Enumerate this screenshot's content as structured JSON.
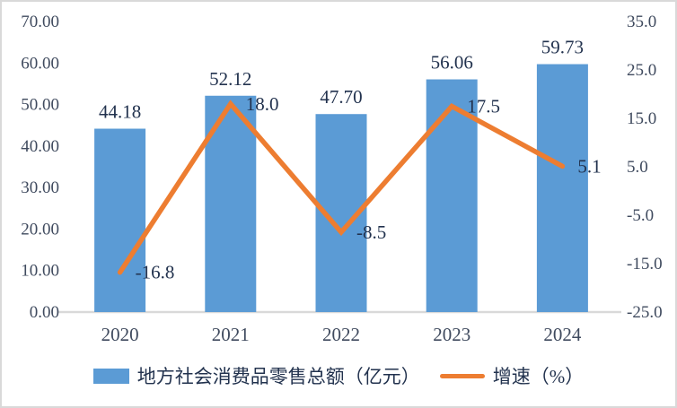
{
  "colors": {
    "bar": "#5B9BD5",
    "line": "#ED7D31",
    "axis_text": "#3f4a5e",
    "data_label_text": "#22324e",
    "axis_line": "#d9d9d9",
    "frame_border": "#d9d9d9"
  },
  "chart_data": {
    "type": "bar",
    "subtype": "combo-bar-line",
    "categories": [
      "2020",
      "2021",
      "2022",
      "2023",
      "2024"
    ],
    "series": [
      {
        "name": "地方社会消费品零售总额（亿元）",
        "type": "bar",
        "axis": "left",
        "values": [
          44.18,
          52.12,
          47.7,
          56.06,
          59.73
        ],
        "labels": [
          "44.18",
          "52.12",
          "47.70",
          "56.06",
          "59.73"
        ],
        "color": "#5B9BD5"
      },
      {
        "name": "增速（%）",
        "type": "line",
        "axis": "right",
        "values": [
          -16.8,
          18.0,
          -8.5,
          17.5,
          5.1
        ],
        "labels": [
          "-16.8",
          "18.0",
          "-8.5",
          "17.5",
          "5.1"
        ],
        "color": "#ED7D31"
      }
    ],
    "left_axis": {
      "min": 0,
      "max": 70,
      "step": 10,
      "tick_labels": [
        "0.00",
        "10.00",
        "20.00",
        "30.00",
        "40.00",
        "50.00",
        "60.00",
        "70.00"
      ]
    },
    "right_axis": {
      "min": -25,
      "max": 35,
      "step": 10,
      "tick_labels": [
        "-25.0",
        "-15.0",
        "-5.0",
        "5.0",
        "15.0",
        "25.0",
        "35.0"
      ]
    },
    "title": "",
    "xlabel": "",
    "ylabel": "",
    "grid": false,
    "legend_position": "bottom"
  },
  "legend": {
    "bar_label": "地方社会消费品零售总额（亿元）",
    "line_label": "增速（%）"
  }
}
